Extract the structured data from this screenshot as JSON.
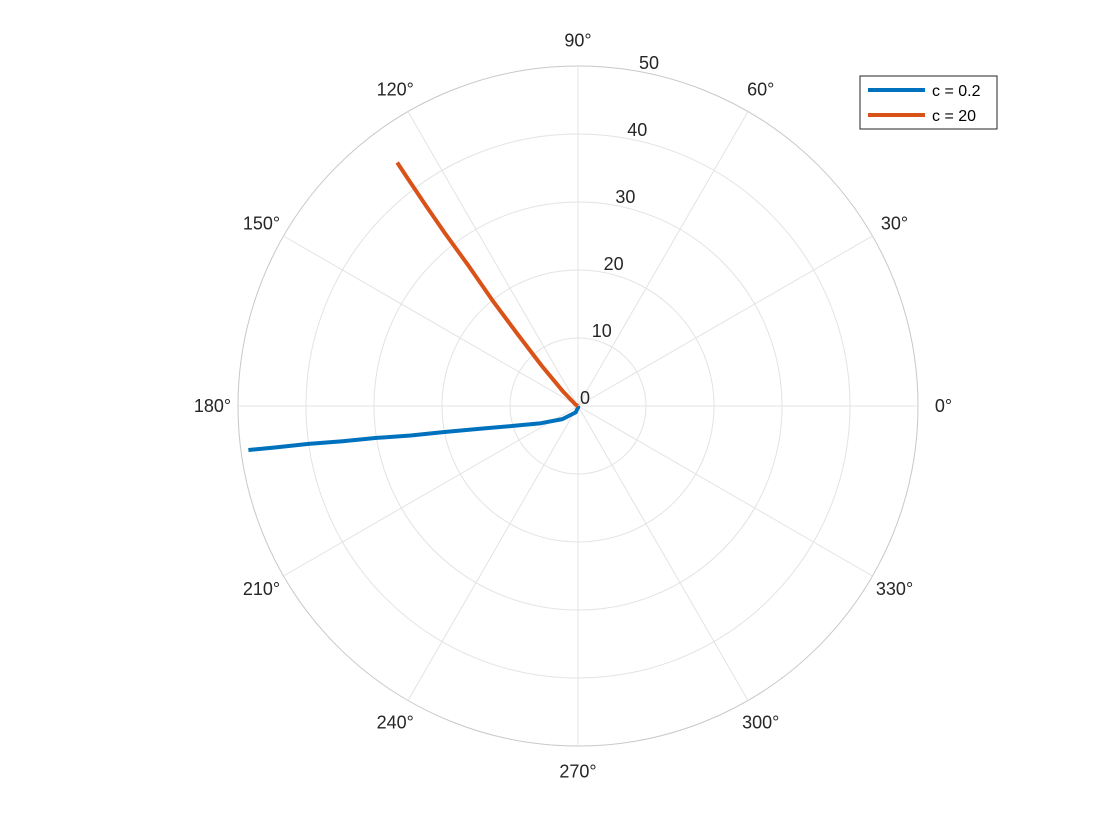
{
  "chart_data": {
    "type": "polar-line",
    "title": "",
    "theta_unit": "degrees",
    "r_lim": [
      0,
      50
    ],
    "r_ticks": [
      0,
      10,
      20,
      30,
      40,
      50
    ],
    "theta_ticks": [
      0,
      30,
      60,
      90,
      120,
      150,
      180,
      210,
      240,
      270,
      300,
      330
    ],
    "theta_tick_labels": [
      "0°",
      "30°",
      "60°",
      "90°",
      "120°",
      "150°",
      "180°",
      "210°",
      "240°",
      "270°",
      "300°",
      "330°"
    ],
    "r_tick_labels": [
      "0",
      "10",
      "20",
      "30",
      "40",
      "50"
    ],
    "grid": true,
    "legend": {
      "position": "top-right",
      "entries": [
        "c = 0.2",
        "c = 20"
      ]
    },
    "series": [
      {
        "name": "c = 0.2",
        "color": "#0072BD",
        "points": [
          {
            "theta": 280,
            "r": 0.2
          },
          {
            "theta": 250,
            "r": 1
          },
          {
            "theta": 220,
            "r": 3
          },
          {
            "theta": 205,
            "r": 6
          },
          {
            "theta": 197,
            "r": 10
          },
          {
            "theta": 193,
            "r": 15
          },
          {
            "theta": 191,
            "r": 20
          },
          {
            "theta": 190,
            "r": 25
          },
          {
            "theta": 189,
            "r": 30
          },
          {
            "theta": 188.5,
            "r": 35
          },
          {
            "theta": 188,
            "r": 40
          },
          {
            "theta": 187.8,
            "r": 45
          },
          {
            "theta": 187.6,
            "r": 48.9
          }
        ]
      },
      {
        "name": "c = 20",
        "color": "#D95319",
        "points": [
          {
            "theta": 150,
            "r": 0.4
          },
          {
            "theta": 136,
            "r": 3
          },
          {
            "theta": 132,
            "r": 8
          },
          {
            "theta": 130,
            "r": 14
          },
          {
            "theta": 129,
            "r": 20
          },
          {
            "theta": 128,
            "r": 26
          },
          {
            "theta": 127.6,
            "r": 32
          },
          {
            "theta": 127.2,
            "r": 37
          },
          {
            "theta": 126.8,
            "r": 42
          },
          {
            "theta": 126.6,
            "r": 44.6
          }
        ]
      }
    ]
  }
}
